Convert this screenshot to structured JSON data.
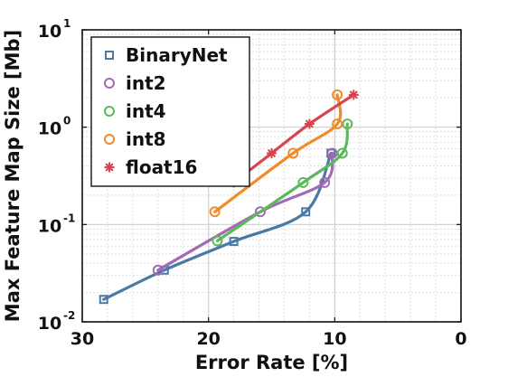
{
  "chart_data": {
    "type": "line",
    "xlabel": "Error Rate [%]",
    "ylabel": "Max Feature Map Size [Mb]",
    "xlim": [
      30,
      0
    ],
    "x_reversed": true,
    "ylim": [
      0.01,
      10
    ],
    "y_scale": "log",
    "grid": true,
    "legend_position": "top-left",
    "x_ticks": [
      {
        "value": 30,
        "label": "30"
      },
      {
        "value": 20,
        "label": "20"
      },
      {
        "value": 10,
        "label": "10"
      },
      {
        "value": 0,
        "label": "0"
      }
    ],
    "y_ticks": [
      {
        "value": 0.01,
        "base": "10",
        "exp": "-2"
      },
      {
        "value": 0.1,
        "base": "10",
        "exp": "-1"
      },
      {
        "value": 1,
        "base": "10",
        "exp": "0"
      },
      {
        "value": 10,
        "base": "10",
        "exp": "1"
      }
    ],
    "series": [
      {
        "name": "BinaryNet",
        "color": "#4a79a5",
        "marker": "square",
        "x": [
          28.3,
          23.5,
          18.0,
          12.3,
          10.3
        ],
        "y": [
          0.017,
          0.034,
          0.067,
          0.135,
          0.54
        ]
      },
      {
        "name": "int2",
        "color": "#a26ab5",
        "marker": "circle",
        "x": [
          24.0,
          15.9,
          10.8,
          10.2
        ],
        "y": [
          0.034,
          0.135,
          0.27,
          0.54
        ]
      },
      {
        "name": "int4",
        "color": "#5cb85a",
        "marker": "circle",
        "x": [
          19.3,
          12.5,
          9.4,
          9.0
        ],
        "y": [
          0.068,
          0.27,
          0.54,
          1.08
        ]
      },
      {
        "name": "int8",
        "color": "#f08c28",
        "marker": "circle",
        "x": [
          19.5,
          13.3,
          9.8,
          9.8
        ],
        "y": [
          0.135,
          0.54,
          1.08,
          2.15
        ]
      },
      {
        "name": "float16",
        "color": "#d9434e",
        "marker": "asterisk",
        "x": [
          18.0,
          15.0,
          12.0,
          8.5
        ],
        "y": [
          0.27,
          0.54,
          1.08,
          2.15
        ]
      }
    ]
  }
}
